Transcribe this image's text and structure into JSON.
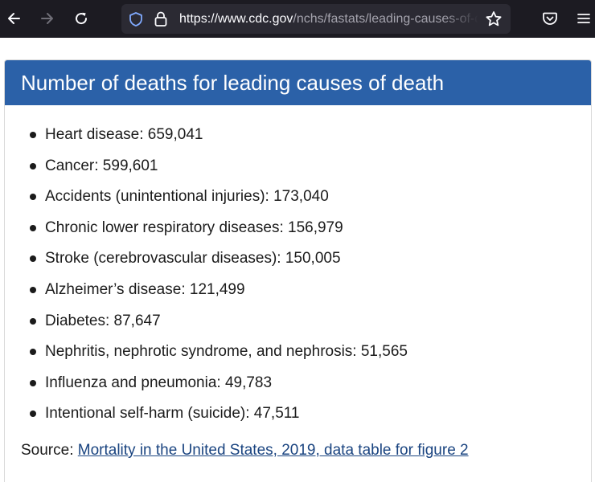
{
  "browser": {
    "url_host": "https://www.cdc.gov",
    "url_path": "/nchs/fastats/leading-causes-of-death.htm",
    "icons": [
      "back-arrow-icon",
      "forward-arrow-icon",
      "reload-icon",
      "shield-icon",
      "lock-icon",
      "bookmark-star-icon",
      "pocket-icon",
      "hamburger-menu-icon"
    ]
  },
  "page": {
    "title": "Number of deaths for leading causes of death",
    "causes": [
      "Heart disease: 659,041",
      "Cancer: 599,601",
      "Accidents (unintentional injuries): 173,040",
      "Chronic lower respiratory diseases: 156,979",
      "Stroke (cerebrovascular diseases): 150,005",
      "Alzheimer’s disease: 121,499",
      "Diabetes: 87,647",
      "Nephritis, nephrotic syndrome, and nephrosis: 51,565",
      "Influenza and pneumonia: 49,783",
      "Intentional self-harm (suicide): 47,511"
    ],
    "source_label": "Source:",
    "source_link": "Mortality in the United States, 2019, data table for figure 2"
  },
  "colors": {
    "header_bg": "#2b61a8",
    "link": "#1a4480",
    "toolbar_bg": "#1c1b22"
  }
}
